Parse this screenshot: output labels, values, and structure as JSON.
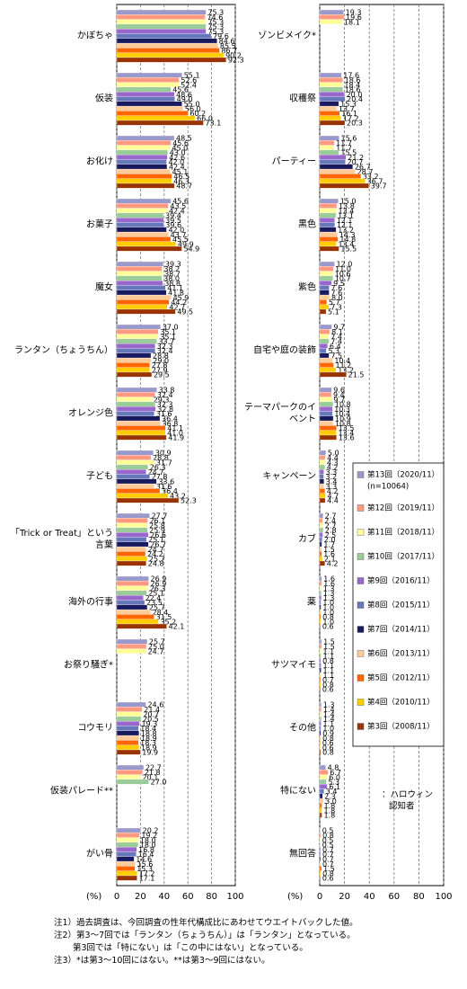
{
  "chart_data": [
    {
      "type": "bar",
      "orientation": "horizontal",
      "x_label": "(%)",
      "xlim": [
        0,
        100
      ],
      "xticks": [
        0,
        20,
        40,
        60,
        80,
        100
      ],
      "grid": true,
      "categories": [
        "かぼちゃ",
        "仮装",
        "お化け",
        "お菓子",
        "魔女",
        "ランタン（ちょうちん）",
        "オレンジ色",
        "子ども",
        "「Trick or Treat」という言葉",
        "海外の行事",
        "お祭り騒ぎ*",
        "コウモリ",
        "仮装パレード**",
        "がい骨"
      ],
      "series": [
        {
          "color": "#9999cc",
          "values": [
            75.3,
            55.1,
            48.5,
            45.6,
            39.3,
            37.0,
            33.8,
            30.9,
            27.7,
            26.9,
            25.7,
            24.6,
            22.7,
            20.2
          ],
          "value_labels": [
            "75.3",
            "55.1",
            "48.5",
            "45.6",
            "39.3",
            "37.0",
            "33.8",
            "30.9",
            "27.7",
            "26.9",
            "25.7",
            "24.6",
            "22.7",
            "20.2"
          ]
        },
        {
          "color": "#ff9980",
          "values": [
            74.6,
            52.6,
            45.6,
            43.5,
            38.2,
            35.1,
            32.4,
            28.8,
            26.1,
            26.9,
            25.0,
            21.4,
            21.8,
            19.2
          ],
          "value_labels": [
            "74.6",
            "52.6",
            "45.6",
            "43.5",
            "38.2",
            "35.1",
            "32.4",
            "28.8",
            "26.1",
            "26.9",
            "25.0",
            "21.4",
            "21.8",
            "19.2"
          ]
        },
        {
          "color": "#ffff99",
          "values": [
            75.3,
            52.4,
            45.0,
            42.4,
            38.7,
            35.1,
            29.3,
            31.7,
            25.8,
            26.3,
            24.7,
            20.7,
            20.1,
            18.0
          ],
          "value_labels": [
            "75.3",
            "52.4",
            "45.0",
            "42.4",
            "38.7",
            "35.1",
            "29.3",
            "31.7",
            "25.8",
            "26.3",
            "24.7",
            "20.7",
            "20.1",
            "18.0"
          ]
        },
        {
          "color": "#99cc99",
          "values": [
            75.3,
            45.6,
            43.0,
            39.4,
            38.0,
            33.7,
            32.3,
            26.3,
            25.9,
            25.1,
            null,
            20.5,
            27.0,
            18.0
          ],
          "value_labels": [
            "75.3",
            "45.6",
            "43.0",
            "39.4",
            "38.0",
            "33.7",
            "32.3",
            "26.3",
            "25.9",
            "25.1",
            null,
            "20.5",
            "27.0",
            "18.0"
          ]
        },
        {
          "color": "#9966cc",
          "values": [
            75.3,
            48.6,
            42.6,
            39.5,
            38.8,
            32.3,
            32.8,
            24.7,
            26.6,
            22.4,
            null,
            19.3,
            null,
            16.8
          ],
          "value_labels": [
            "75.3",
            "48.6",
            "42.6",
            "39.5",
            "38.8",
            "32.3",
            "32.8",
            "24.7",
            "26.6",
            "22.4",
            null,
            "19.3",
            null,
            "16.8"
          ]
        },
        {
          "color": "#6677bb",
          "values": [
            79.6,
            49.0,
            42.0,
            39.6,
            41.1,
            32.4,
            31.6,
            27.8,
            25.1,
            23.5,
            null,
            18.4,
            null,
            16.4
          ],
          "value_labels": [
            "79.6",
            "49.0",
            "42.0",
            "39.6",
            "41.1",
            "32.4",
            "31.6",
            "27.8",
            "25.1",
            "23.5",
            null,
            "18.4",
            null,
            "16.4"
          ]
        },
        {
          "color": "#1a1a5e",
          "values": [
            84.6,
            55.0,
            42.4,
            42.0,
            41.8,
            28.8,
            36.4,
            33.6,
            26.7,
            25.7,
            null,
            18.8,
            null,
            14.6
          ],
          "value_labels": [
            "84.6",
            "55.0",
            "42.4",
            "42.0",
            "41.8",
            "28.8",
            "36.4",
            "33.6",
            "26.7",
            "25.7",
            null,
            "18.8",
            null,
            "14.6"
          ]
        },
        {
          "color": "#ffcc99",
          "values": [
            85.5,
            56.0,
            45.1,
            43.7,
            45.9,
            29.0,
            36.8,
            31.6,
            24.7,
            28.4,
            null,
            18.9,
            null,
            15.6
          ],
          "value_labels": [
            "85.5",
            "56.0",
            "45.1",
            "43.7",
            "45.9",
            "29.0",
            "36.8",
            "31.6",
            "24.7",
            "28.4",
            null,
            "18.9",
            null,
            "15.6"
          ]
        },
        {
          "color": "#ff6600",
          "values": [
            86.7,
            60.2,
            46.5,
            45.5,
            44.2,
            27.8,
            41.1,
            36.4,
            24.2,
            31.5,
            null,
            18.3,
            null,
            15.3
          ],
          "value_labels": [
            "86.7",
            "60.2",
            "46.5",
            "45.5",
            "44.2",
            "27.8",
            "41.1",
            "36.4",
            "24.2",
            "31.5",
            null,
            "18.3",
            null,
            "15.3"
          ]
        },
        {
          "color": "#ffcc00",
          "values": [
            90.2,
            66.0,
            46.3,
            49.9,
            42.7,
            27.9,
            41.0,
            43.2,
            25.7,
            35.2,
            null,
            18.9,
            null,
            17.2
          ],
          "value_labels": [
            "90.2",
            "66.0",
            "46.3",
            "49.9",
            "42.7",
            "27.9",
            "41.0",
            "43.2",
            "25.7",
            "35.2",
            null,
            "18.9",
            null,
            "17.2"
          ]
        },
        {
          "color": "#993300",
          "values": [
            92.3,
            73.1,
            48.7,
            54.9,
            49.5,
            29.5,
            41.9,
            52.3,
            24.8,
            42.1,
            null,
            19.9,
            null,
            17.1
          ],
          "value_labels": [
            "92.3",
            "73.1",
            "48.7",
            "54.9",
            "49.5",
            "29.5",
            "41.9",
            "52.3",
            "24.8",
            "42.1",
            null,
            "19.9",
            null,
            "17.1"
          ]
        }
      ]
    },
    {
      "type": "bar",
      "orientation": "horizontal",
      "x_label": "(%)",
      "xlim": [
        0,
        100
      ],
      "xticks": [
        0,
        20,
        40,
        60,
        80,
        100
      ],
      "grid": true,
      "categories": [
        "ゾンビメイク*",
        "収穫祭",
        "パーティー",
        "黒色",
        "紫色",
        "自宅や庭の装飾",
        "テーマパークのイベント",
        "キャンペーン",
        "カブ",
        "薬",
        "サツマイモ",
        "その他",
        "特にない",
        "無回答"
      ],
      "legend_note": "(n=10064)",
      "annotation": [
        "：ハロウィン",
        "認知者"
      ],
      "series": [
        {
          "name": "第13回（2020/11）",
          "color": "#9999cc",
          "values": [
            19.3,
            17.6,
            15.6,
            15.0,
            12.0,
            9.7,
            9.6,
            5.0,
            2.7,
            1.6,
            1.5,
            1.3,
            4.8,
            0.5
          ],
          "value_labels": [
            "19.3",
            "17.6",
            "15.6",
            "15.0",
            "12.0",
            "9.7",
            "9.6",
            "5.0",
            "2.7",
            "1.6",
            "1.5",
            "1.3",
            "4.8",
            "0.5"
          ]
        },
        {
          "name": "第12回（2019/11）",
          "color": "#ff9980",
          "values": [
            19.6,
            18.6,
            11.7,
            13.8,
            11.0,
            8.1,
            9.4,
            4.4,
            2.4,
            1.6,
            1.5,
            1.4,
            6.7,
            0.8
          ],
          "value_labels": [
            "19.6",
            "18.6",
            "11.7",
            "13.8",
            "11.0",
            "8.1",
            "9.4",
            "4.4",
            "2.4",
            "1.6",
            "1.5",
            "1.4",
            "6.7",
            "0.8"
          ]
        },
        {
          "name": "第11回（2018/11）",
          "color": "#ffff99",
          "values": [
            18.1,
            18.4,
            11.7,
            13.4,
            10.6,
            7.4,
            9.7,
            4.3,
            2.7,
            1.3,
            1.1,
            1.4,
            6.0,
            0.5
          ],
          "value_labels": [
            "18.1",
            "18.4",
            "11.7",
            "13.4",
            "10.6",
            "7.4",
            "9.7",
            "4.3",
            "2.7",
            "1.3",
            "1.1",
            "1.4",
            "6.0",
            "0.5"
          ]
        },
        {
          "name": "第10回（2017/11）",
          "color": "#99cc99",
          "values": [
            null,
            18.6,
            15.5,
            13.1,
            10.7,
            7.4,
            10.8,
            4.2,
            2.8,
            1.3,
            1.1,
            1.4,
            5.3,
            0.5
          ],
          "value_labels": [
            null,
            "18.6",
            "15.5",
            "13.1",
            "10.7",
            "7.4",
            "10.8",
            "4.2",
            "2.8",
            "1.3",
            "1.1",
            "1.4",
            "5.3",
            "0.5"
          ]
        },
        {
          "name": "第9回（2016/11）",
          "color": "#9966cc",
          "values": [
            null,
            20.0,
            21.2,
            12.1,
            9.5,
            6.4,
            10.3,
            3.3,
            2.5,
            1.3,
            0.8,
            1.1,
            6.1,
            0.7
          ],
          "value_labels": [
            null,
            "20.0",
            "21.2",
            "12.1",
            "9.5",
            "6.4",
            "10.3",
            "3.3",
            "2.5",
            "1.3",
            "0.8",
            "1.1",
            "6.1",
            "0.7"
          ]
        },
        {
          "name": "第8回（2015/11）",
          "color": "#6677bb",
          "values": [
            null,
            20.4,
            20.7,
            12.1,
            7.6,
            5.3,
            10.4,
            3.2,
            2.0,
            1.0,
            1.1,
            1.0,
            3.4,
            0.7
          ],
          "value_labels": [
            null,
            "20.4",
            "20.7",
            "12.1",
            "7.6",
            "5.3",
            "10.4",
            "3.2",
            "2.0",
            "1.0",
            "1.1",
            "1.0",
            "3.4",
            "0.7"
          ]
        },
        {
          "name": "第7回（2014/11）",
          "color": "#1a1a5e",
          "values": [
            null,
            15.3,
            26.7,
            13.2,
            7.6,
            7.5,
            10.9,
            3.4,
            1.7,
            1.0,
            1.1,
            0.9,
            2.3,
            0.7
          ],
          "value_labels": [
            null,
            "15.3",
            "26.7",
            "13.2",
            "7.6",
            "7.5",
            "10.9",
            "3.4",
            "1.7",
            "1.0",
            "1.1",
            "0.9",
            "2.3",
            "0.7"
          ]
        },
        {
          "name": "第6回（2013/11）",
          "color": "#ffcc99",
          "values": [
            null,
            13.7,
            28.7,
            14.3,
            8.0,
            10.4,
            10.8,
            3.3,
            1.5,
            1.0,
            1.1,
            0.8,
            3.0,
            0.7
          ],
          "value_labels": [
            null,
            "13.7",
            "28.7",
            "14.3",
            "8.0",
            "10.4",
            "10.8",
            "3.3",
            "1.5",
            "1.0",
            "1.1",
            "0.8",
            "3.0",
            "0.7"
          ]
        },
        {
          "name": "第5回（2012/11）",
          "color": "#ff6600",
          "values": [
            null,
            16.1,
            33.2,
            14.8,
            5.7,
            11.2,
            13.5,
            4.2,
            1.6,
            0.8,
            0.7,
            0.6,
            1.8,
            1.5
          ],
          "value_labels": [
            null,
            "16.1",
            "33.2",
            "14.8",
            "5.7",
            "11.2",
            "13.5",
            "4.2",
            "1.6",
            "0.8",
            "0.7",
            "0.6",
            "1.8",
            "1.5"
          ]
        },
        {
          "name": "第4回（2010/11）",
          "color": "#ffcc00",
          "values": [
            null,
            17.2,
            36.7,
            13.4,
            7.3,
            13.2,
            13.4,
            4.7,
            2.1,
            1.0,
            0.8,
            0.6,
            1.8,
            0.8
          ],
          "value_labels": [
            null,
            "17.2",
            "36.7",
            "13.4",
            "7.3",
            "13.2",
            "13.4",
            "4.7",
            "2.1",
            "1.0",
            "0.8",
            "0.6",
            "1.8",
            "0.8"
          ]
        },
        {
          "name": "第3回（2008/11）",
          "color": "#993300",
          "values": [
            null,
            20.3,
            39.7,
            15.5,
            5.1,
            21.5,
            13.6,
            4.4,
            4.2,
            0.6,
            0.6,
            0.8,
            1.8,
            0.6
          ],
          "value_labels": [
            null,
            "20.3",
            "39.7",
            "15.5",
            "5.1",
            "21.5",
            "13.6",
            "4.4",
            "4.2",
            "0.6",
            "0.6",
            "0.8",
            "1.8",
            "0.6"
          ]
        }
      ]
    }
  ],
  "notes": [
    "注1）過去調査は、今回調査の性年代構成比にあわせてウエイトバックした値。",
    "注2）第3～7回では「ランタン（ちょうちん）」は「ランタン」となっている。",
    "第3回では「特にない」は「この中にはない」となっている。",
    "注3）*は第3～10回にはない。**は第3～9回にはない。"
  ]
}
